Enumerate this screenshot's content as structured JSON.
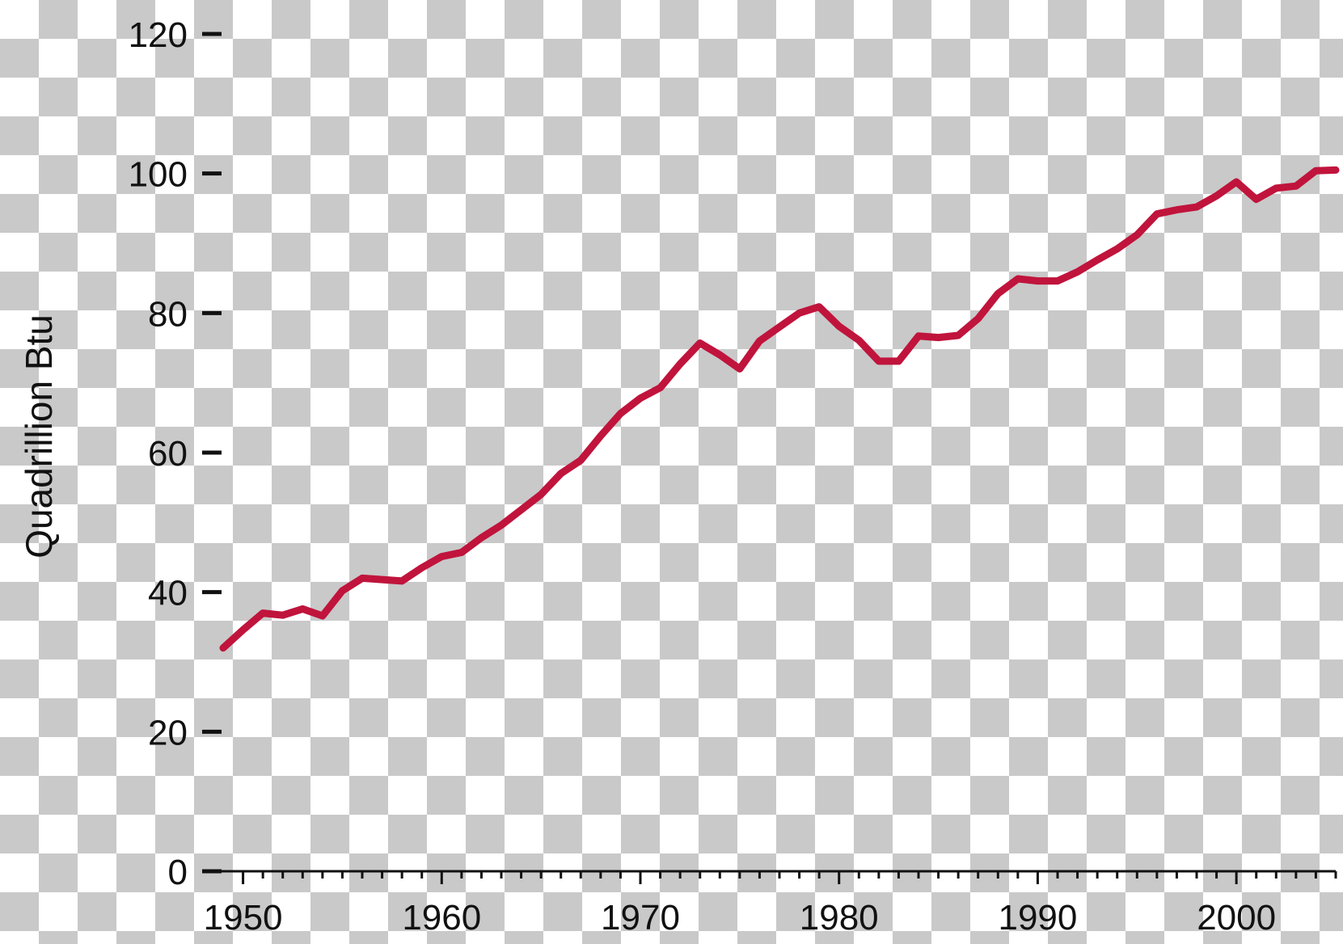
{
  "chart_data": {
    "type": "line",
    "title": "",
    "xlabel": "",
    "ylabel": "Quadrillion Btu",
    "xlim": [
      1949,
      2005
    ],
    "ylim": [
      0,
      120
    ],
    "yticks": [
      0,
      20,
      40,
      60,
      80,
      100,
      120
    ],
    "xticks": [
      1950,
      1960,
      1970,
      1980,
      1990,
      2000
    ],
    "grid": false,
    "line_color": "#c0143c",
    "series": [
      {
        "x": [
          1949,
          1950,
          1951,
          1952,
          1953,
          1954,
          1955,
          1956,
          1957,
          1958,
          1959,
          1960,
          1961,
          1962,
          1963,
          1964,
          1965,
          1966,
          1967,
          1968,
          1969,
          1970,
          1971,
          1972,
          1973,
          1974,
          1975,
          1976,
          1977,
          1978,
          1979,
          1980,
          1981,
          1982,
          1983,
          1984,
          1985,
          1986,
          1987,
          1988,
          1989,
          1990,
          1991,
          1992,
          1993,
          1994,
          1995,
          1996,
          1997,
          1998,
          1999,
          2000,
          2001,
          2002,
          2003,
          2004,
          2005
        ],
        "y": [
          32.0,
          34.6,
          37.0,
          36.7,
          37.6,
          36.6,
          40.2,
          42.0,
          41.8,
          41.6,
          43.5,
          45.1,
          45.7,
          47.8,
          49.6,
          51.8,
          54.0,
          57.0,
          58.9,
          62.4,
          65.6,
          67.8,
          69.3,
          72.7,
          75.7,
          74.0,
          72.0,
          76.0,
          78.0,
          80.0,
          80.9,
          78.1,
          76.1,
          73.1,
          73.1,
          76.7,
          76.5,
          76.8,
          79.2,
          82.8,
          84.9,
          84.6,
          84.6,
          85.9,
          87.6,
          89.2,
          91.2,
          94.2,
          94.8,
          95.2,
          96.8,
          98.8,
          96.3,
          97.9,
          98.2,
          100.4,
          100.5
        ]
      }
    ]
  }
}
